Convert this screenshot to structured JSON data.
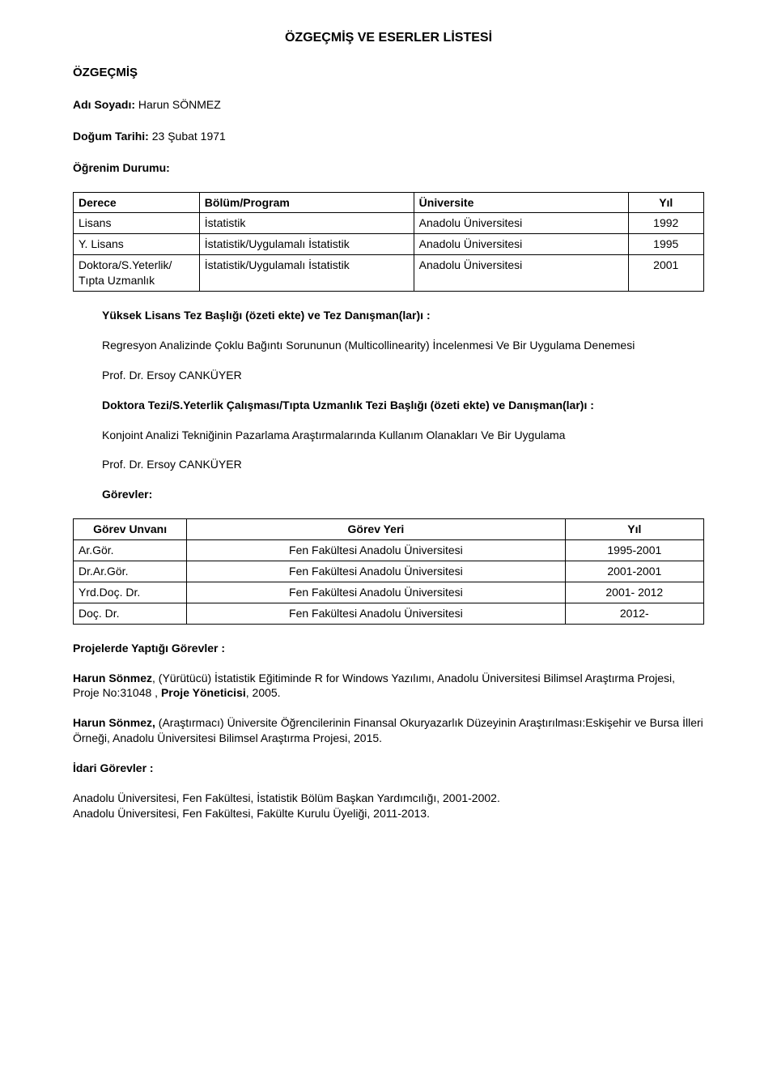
{
  "doc": {
    "title": "ÖZGEÇMİŞ VE ESERLER LİSTESİ",
    "section_cv": "ÖZGEÇMİŞ",
    "name_label": "Adı Soyadı:",
    "name_value": "Harun SÖNMEZ",
    "dob_label": "Doğum Tarihi:",
    "dob_value": "23 Şubat 1971",
    "edu_label": "Öğrenim Durumu:"
  },
  "education": {
    "headers": [
      "Derece",
      "Bölüm/Program",
      "Üniversite",
      "Yıl"
    ],
    "rows": [
      [
        "Lisans",
        "İstatistik",
        "Anadolu Üniversitesi",
        "1992"
      ],
      [
        "Y. Lisans",
        "İstatistik/Uygulamalı İstatistik",
        "Anadolu Üniversitesi",
        "1995"
      ],
      [
        "Doktora/S.Yeterlik/\nTıpta Uzmanlık",
        "İstatistik/Uygulamalı İstatistik",
        "Anadolu Üniversitesi",
        "2001"
      ]
    ]
  },
  "msc": {
    "heading": "Yüksek Lisans Tez Başlığı (özeti ekte) ve Tez Danışman(lar)ı  :",
    "title": "Regresyon Analizinde Çoklu Bağıntı Sorununun (Multicollinearity) İncelenmesi Ve Bir Uygulama Denemesi",
    "advisor": "Prof. Dr. Ersoy CANKÜYER"
  },
  "phd": {
    "heading": "Doktora Tezi/S.Yeterlik Çalışması/Tıpta Uzmanlık Tezi Başlığı (özeti ekte)  ve Danışman(lar)ı :",
    "title": "Konjoint Analizi Tekniğinin Pazarlama Araştırmalarında Kullanım Olanakları Ve Bir Uygulama",
    "advisor": "Prof. Dr. Ersoy CANKÜYER"
  },
  "positions": {
    "heading": "Görevler:",
    "headers": [
      "Görev Unvanı",
      "Görev Yeri",
      "Yıl"
    ],
    "rows": [
      [
        "Ar.Gör.",
        "Fen Fakültesi Anadolu Üniversitesi",
        "1995-2001"
      ],
      [
        "Dr.Ar.Gör.",
        "Fen Fakültesi Anadolu Üniversitesi",
        "2001-2001"
      ],
      [
        "Yrd.Doç. Dr.",
        "Fen Fakültesi Anadolu Üniversitesi",
        "2001- 2012"
      ],
      [
        "Doç. Dr.",
        "Fen Fakültesi Anadolu Üniversitesi",
        "2012-"
      ]
    ]
  },
  "projects": {
    "heading": "Projelerde Yaptığı Görevler :",
    "p1_pre": "Harun Sönmez",
    "p1_rest": ", (Yürütücü) İstatistik Eğitiminde R for Windows Yazılımı, Anadolu Üniversitesi Bilimsel Araştırma Projesi, Proje No:31048 , ",
    "p1_bold2": "Proje Yöneticisi",
    "p1_tail": ", 2005.",
    "p2_pre": "Harun Sönmez,",
    "p2_rest": " (Araştırmacı) Üniversite Öğrencilerinin Finansal Okuryazarlık Düzeyinin Araştırılması:Eskişehir ve Bursa İlleri Örneği, Anadolu Üniversitesi Bilimsel Araştırma Projesi, 2015."
  },
  "admin": {
    "heading": "İdari Görevler :",
    "line1": "Anadolu Üniversitesi, Fen Fakültesi, İstatistik Bölüm Başkan Yardımcılığı, 2001-2002.",
    "line2": "Anadolu Üniversitesi, Fen Fakültesi, Fakülte Kurulu Üyeliği, 2011-2013."
  }
}
